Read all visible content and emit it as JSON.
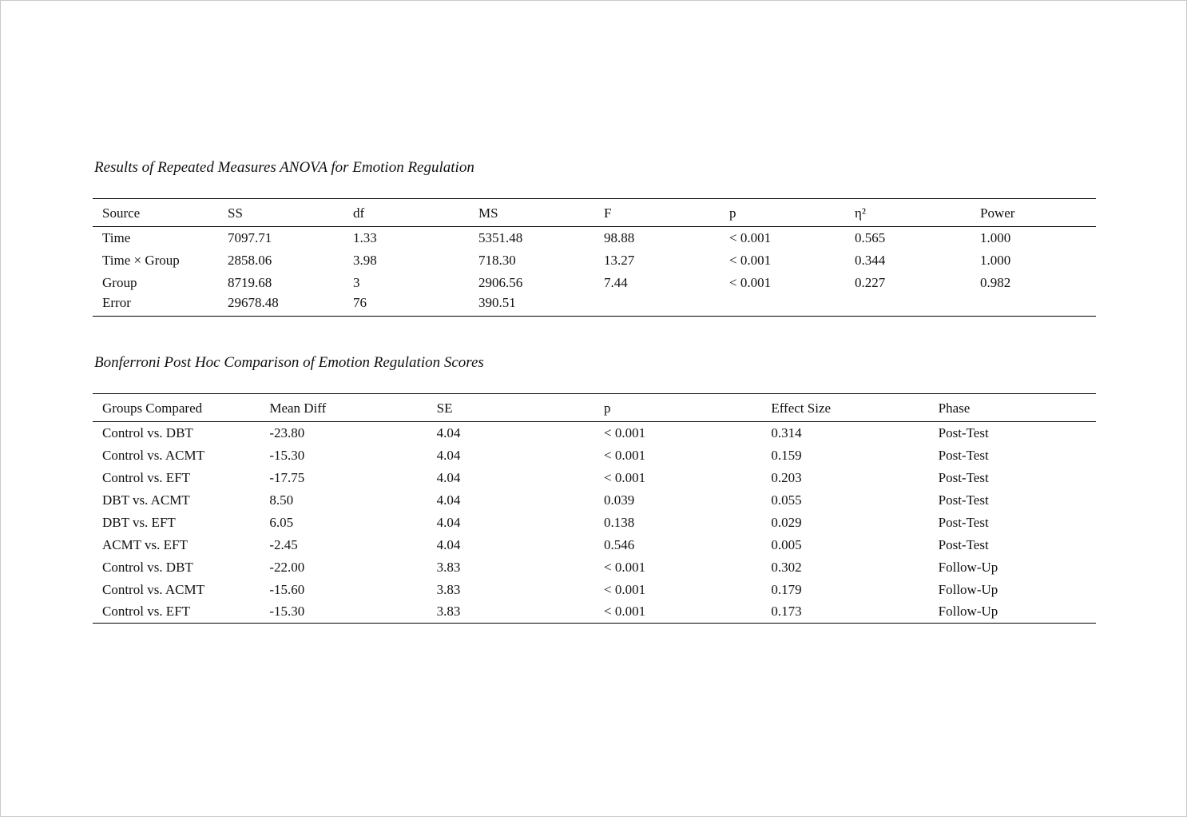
{
  "anova_table": {
    "title": "Results of Repeated Measures ANOVA for Emotion Regulation",
    "columns": [
      "Source",
      "SS",
      "df",
      "MS",
      "F",
      "p",
      "η²",
      "Power"
    ],
    "rows": [
      [
        "Time",
        "7097.71",
        "1.33",
        "5351.48",
        "98.88",
        "< 0.001",
        "0.565",
        "1.000"
      ],
      [
        "Time × Group",
        "2858.06",
        "3.98",
        "718.30",
        "13.27",
        "< 0.001",
        "0.344",
        "1.000"
      ],
      [
        "Group",
        "8719.68",
        "3",
        "2906.56",
        "7.44",
        "< 0.001",
        "0.227",
        "0.982"
      ],
      [
        "Error",
        "29678.48",
        "76",
        "390.51",
        "",
        "",
        "",
        ""
      ]
    ]
  },
  "posthoc_table": {
    "title": "Bonferroni Post Hoc Comparison of Emotion Regulation Scores",
    "columns": [
      "Groups Compared",
      "Mean Diff",
      "SE",
      "p",
      "Effect Size",
      "Phase"
    ],
    "rows": [
      [
        "Control vs. DBT",
        "-23.80",
        "4.04",
        "< 0.001",
        "0.314",
        "Post-Test"
      ],
      [
        "Control vs. ACMT",
        "-15.30",
        "4.04",
        "< 0.001",
        "0.159",
        "Post-Test"
      ],
      [
        "Control vs. EFT",
        "-17.75",
        "4.04",
        "< 0.001",
        "0.203",
        "Post-Test"
      ],
      [
        "DBT vs. ACMT",
        "8.50",
        "4.04",
        "0.039",
        "0.055",
        "Post-Test"
      ],
      [
        "DBT vs. EFT",
        "6.05",
        "4.04",
        "0.138",
        "0.029",
        "Post-Test"
      ],
      [
        "ACMT vs. EFT",
        "-2.45",
        "4.04",
        "0.546",
        "0.005",
        "Post-Test"
      ],
      [
        "Control vs. DBT",
        "-22.00",
        "3.83",
        "< 0.001",
        "0.302",
        "Follow-Up"
      ],
      [
        "Control vs. ACMT",
        "-15.60",
        "3.83",
        "< 0.001",
        "0.179",
        "Follow-Up"
      ],
      [
        "Control vs. EFT",
        "-15.30",
        "3.83",
        "< 0.001",
        "0.173",
        "Follow-Up"
      ]
    ]
  }
}
